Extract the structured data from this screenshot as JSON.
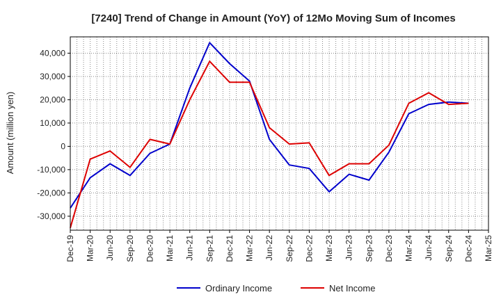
{
  "chart_data": {
    "type": "line",
    "title": "[7240]  Trend of Change in Amount (YoY) of 12Mo Moving Sum of Incomes",
    "xlabel": "",
    "ylabel": "Amount (million yen)",
    "ylim": [
      -36000,
      47000
    ],
    "yticks": [
      -30000,
      -20000,
      -10000,
      0,
      10000,
      20000,
      30000,
      40000
    ],
    "ytick_labels": [
      "-30,000",
      "-20,000",
      "-10,000",
      "0",
      "10,000",
      "20,000",
      "30,000",
      "40,000"
    ],
    "categories": [
      "Dec-19",
      "Mar-20",
      "Jun-20",
      "Sep-20",
      "Dec-20",
      "Mar-21",
      "Jun-21",
      "Sep-21",
      "Dec-21",
      "Mar-22",
      "Jun-22",
      "Sep-22",
      "Dec-22",
      "Mar-23",
      "Jun-23",
      "Sep-23",
      "Dec-23",
      "Mar-24",
      "Jun-24",
      "Sep-24",
      "Dec-24",
      "Mar-25"
    ],
    "grid": true,
    "legend_position": "bottom-center",
    "series": [
      {
        "name": "Ordinary Income",
        "color": "#0000cc",
        "values": [
          -26500,
          -13500,
          -7500,
          -12500,
          -3000,
          1000,
          25000,
          44500,
          35500,
          28000,
          3000,
          -8000,
          -9500,
          -19500,
          -12000,
          -14500,
          -2500,
          14000,
          18000,
          19000,
          18500,
          null
        ]
      },
      {
        "name": "Net Income",
        "color": "#dd0000",
        "values": [
          -35000,
          -5500,
          -2000,
          -9000,
          3000,
          1000,
          20000,
          36500,
          27500,
          27500,
          8000,
          1000,
          1500,
          -12500,
          -7500,
          -7500,
          500,
          18500,
          23000,
          18000,
          18500,
          null
        ]
      }
    ]
  }
}
